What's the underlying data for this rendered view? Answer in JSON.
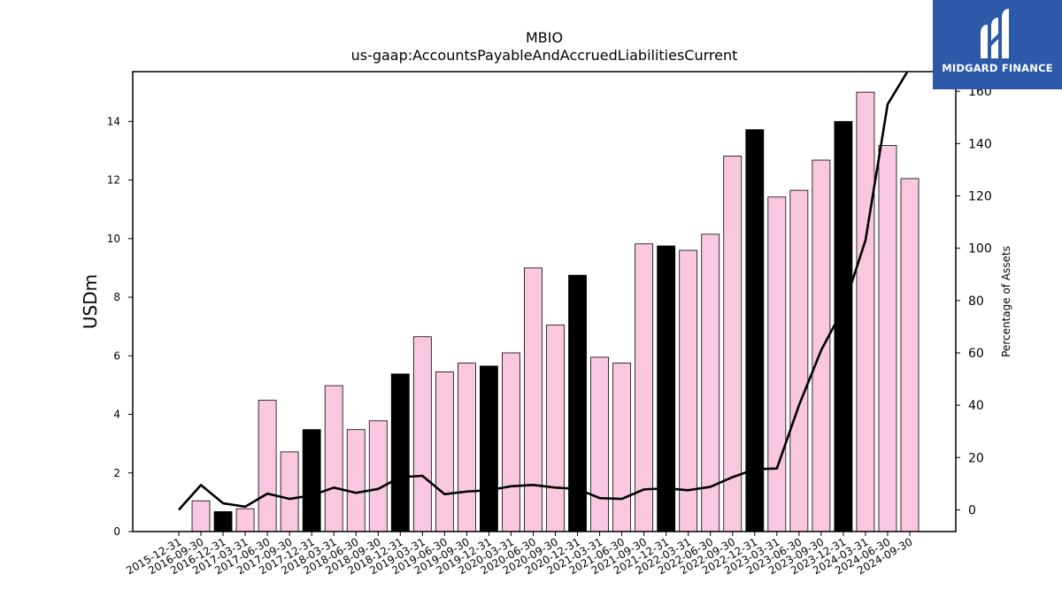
{
  "chart_data": {
    "type": "bar",
    "title": "MBIO",
    "subtitle": "us-gaap:AccountsPayableAndAccruedLiabilitiesCurrent",
    "ylabel": "USDm",
    "y2label": "Percentage of Assets",
    "ylim": [
      0,
      15.7
    ],
    "y2lim": [
      -8.3,
      167.5
    ],
    "yticks": [
      0,
      2,
      4,
      6,
      8,
      10,
      12,
      14
    ],
    "y2ticks": [
      0,
      20,
      40,
      60,
      80,
      100,
      120,
      140,
      160
    ],
    "categories": [
      "2015-12-31",
      "2016-09-30",
      "2016-12-31",
      "2017-03-31",
      "2017-06-30",
      "2017-09-30",
      "2017-12-31",
      "2018-03-31",
      "2018-06-30",
      "2018-09-30",
      "2018-12-31",
      "2019-03-31",
      "2019-06-30",
      "2019-09-30",
      "2019-12-31",
      "2020-03-31",
      "2020-06-30",
      "2020-09-30",
      "2020-12-31",
      "2021-03-31",
      "2021-06-30",
      "2021-09-30",
      "2021-12-31",
      "2022-03-31",
      "2022-06-30",
      "2022-09-30",
      "2022-12-31",
      "2023-03-31",
      "2023-06-30",
      "2023-09-30",
      "2023-12-31",
      "2024-03-31",
      "2024-06-30",
      "2024-09-30"
    ],
    "series": [
      {
        "type": "bar",
        "values": [
          0,
          1.05,
          0.68,
          0.78,
          4.48,
          2.72,
          3.48,
          4.98,
          3.48,
          3.78,
          5.38,
          6.65,
          5.45,
          5.75,
          5.65,
          6.1,
          9.0,
          7.05,
          8.75,
          5.95,
          5.75,
          9.82,
          9.75,
          9.6,
          10.15,
          12.82,
          13.72,
          11.42,
          11.65,
          12.68,
          14.0,
          15.0,
          13.18,
          12.05
        ],
        "highlight": [
          false,
          false,
          true,
          false,
          false,
          false,
          true,
          false,
          false,
          false,
          true,
          false,
          false,
          false,
          true,
          false,
          false,
          false,
          true,
          false,
          false,
          false,
          true,
          false,
          false,
          false,
          true,
          false,
          false,
          false,
          true,
          false,
          false,
          false
        ]
      },
      {
        "type": "line",
        "axis": "right",
        "values": [
          0,
          9.5,
          2.5,
          1.2,
          6.2,
          4.2,
          5.5,
          8.5,
          6.5,
          8.0,
          12.5,
          13.0,
          6.0,
          7.0,
          7.5,
          9.0,
          9.5,
          8.5,
          8.0,
          4.5,
          4.2,
          7.8,
          8.2,
          7.5,
          8.8,
          12.5,
          15.5,
          15.8,
          40.0,
          61.0,
          77.0,
          103.0,
          155.0,
          169.0
        ]
      }
    ],
    "colors": {
      "bar": "#f9c8e0",
      "bar_highlight": "#000000",
      "line": "#000000"
    },
    "grid": false
  },
  "logo": {
    "text": "MIDGARD FINANCE",
    "bg_color": "#2c5aa8"
  }
}
